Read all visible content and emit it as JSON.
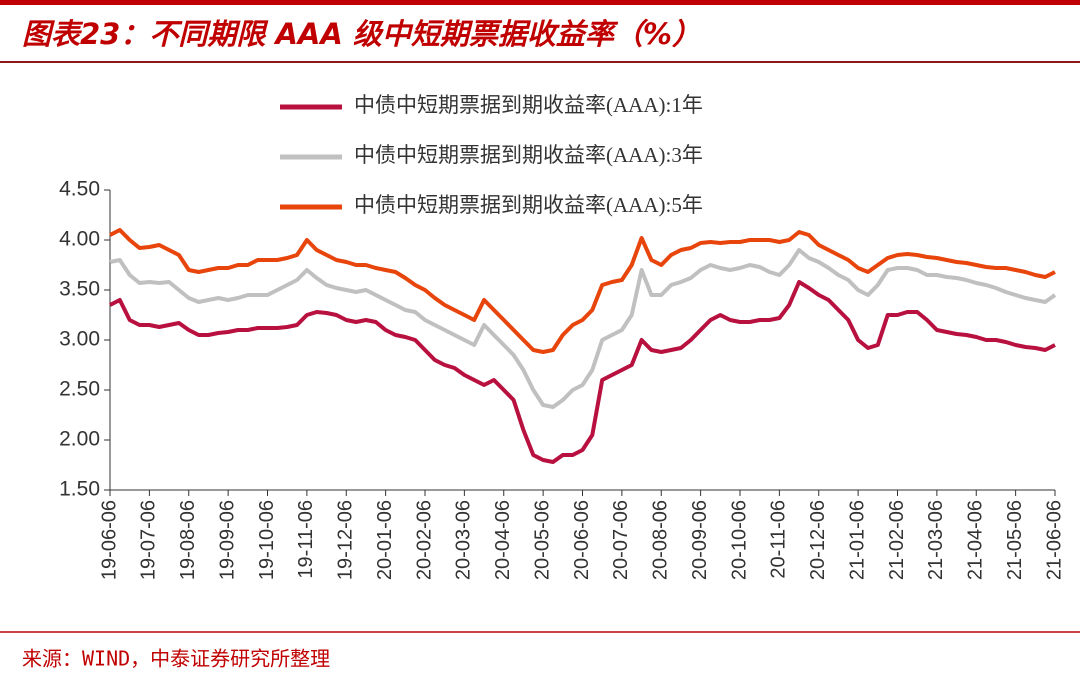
{
  "chart_data": {
    "type": "line",
    "title": "图表23：不同期限 AAA 级中短期票据收益率（%）",
    "source": "来源：WIND，中泰证券研究所整理",
    "categories": [
      "19-06-06",
      null,
      null,
      null,
      "19-07-06",
      null,
      null,
      null,
      "19-08-06",
      null,
      null,
      null,
      "19-09-06",
      null,
      null,
      null,
      "19-10-06",
      null,
      null,
      null,
      "19-11-06",
      null,
      null,
      null,
      "19-12-06",
      null,
      null,
      null,
      "20-01-06",
      null,
      null,
      null,
      "20-02-06",
      null,
      null,
      null,
      "20-03-06",
      null,
      null,
      null,
      "20-04-06",
      null,
      null,
      null,
      "20-05-06",
      null,
      null,
      null,
      "20-06-06",
      null,
      null,
      null,
      "20-07-06",
      null,
      null,
      null,
      "20-08-06",
      null,
      null,
      null,
      "20-09-06",
      null,
      null,
      null,
      "20-10-06",
      null,
      null,
      null,
      "20-11-06",
      null,
      null,
      null,
      "20-12-06",
      null,
      null,
      null,
      "21-01-06",
      null,
      null,
      null,
      "21-02-06",
      null,
      null,
      null,
      "21-03-06",
      null,
      null,
      null,
      "21-04-06",
      null,
      null,
      null,
      "21-05-06",
      null,
      null,
      null,
      "21-06-06"
    ],
    "series": [
      {
        "name": "中债中短期票据到期收益率(AAA):1年",
        "color": "#b8113f",
        "values": [
          3.35,
          3.4,
          3.2,
          3.15,
          3.15,
          3.13,
          3.15,
          3.17,
          3.1,
          3.05,
          3.05,
          3.07,
          3.08,
          3.1,
          3.1,
          3.12,
          3.12,
          3.12,
          3.13,
          3.15,
          3.25,
          3.28,
          3.27,
          3.25,
          3.2,
          3.18,
          3.2,
          3.18,
          3.1,
          3.05,
          3.03,
          3.0,
          2.9,
          2.8,
          2.75,
          2.72,
          2.65,
          2.6,
          2.55,
          2.6,
          2.5,
          2.4,
          2.1,
          1.85,
          1.8,
          1.78,
          1.85,
          1.85,
          1.9,
          2.05,
          2.6,
          2.65,
          2.7,
          2.75,
          3.0,
          2.9,
          2.88,
          2.9,
          2.92,
          3.0,
          3.1,
          3.2,
          3.25,
          3.2,
          3.18,
          3.18,
          3.2,
          3.2,
          3.22,
          3.35,
          3.58,
          3.52,
          3.45,
          3.4,
          3.3,
          3.2,
          3.0,
          2.92,
          2.95,
          3.25,
          3.25,
          3.28,
          3.28,
          3.2,
          3.1,
          3.08,
          3.06,
          3.05,
          3.03,
          3.0,
          3.0,
          2.98,
          2.95,
          2.93,
          2.92,
          2.9,
          2.95
        ]
      },
      {
        "name": "中债中短期票据到期收益率(AAA):3年",
        "color": "#c0c0c0",
        "values": [
          3.78,
          3.8,
          3.65,
          3.57,
          3.58,
          3.57,
          3.58,
          3.5,
          3.42,
          3.38,
          3.4,
          3.42,
          3.4,
          3.42,
          3.45,
          3.45,
          3.45,
          3.5,
          3.55,
          3.6,
          3.7,
          3.62,
          3.55,
          3.52,
          3.5,
          3.48,
          3.5,
          3.45,
          3.4,
          3.35,
          3.3,
          3.28,
          3.2,
          3.15,
          3.1,
          3.05,
          3.0,
          2.95,
          3.15,
          3.05,
          2.95,
          2.85,
          2.7,
          2.5,
          2.35,
          2.33,
          2.4,
          2.5,
          2.55,
          2.7,
          3.0,
          3.05,
          3.1,
          3.25,
          3.7,
          3.45,
          3.45,
          3.55,
          3.58,
          3.62,
          3.7,
          3.75,
          3.72,
          3.7,
          3.72,
          3.75,
          3.73,
          3.68,
          3.65,
          3.75,
          3.9,
          3.82,
          3.78,
          3.72,
          3.65,
          3.6,
          3.5,
          3.45,
          3.55,
          3.7,
          3.72,
          3.72,
          3.7,
          3.65,
          3.65,
          3.63,
          3.62,
          3.6,
          3.57,
          3.55,
          3.52,
          3.48,
          3.45,
          3.42,
          3.4,
          3.38,
          3.45
        ]
      },
      {
        "name": "中债中短期票据到期收益率(AAA):5年",
        "color": "#e8450c",
        "values": [
          4.05,
          4.1,
          4.0,
          3.92,
          3.93,
          3.95,
          3.9,
          3.85,
          3.7,
          3.68,
          3.7,
          3.72,
          3.72,
          3.75,
          3.75,
          3.8,
          3.8,
          3.8,
          3.82,
          3.85,
          4.0,
          3.9,
          3.85,
          3.8,
          3.78,
          3.75,
          3.75,
          3.72,
          3.7,
          3.68,
          3.62,
          3.55,
          3.5,
          3.42,
          3.35,
          3.3,
          3.25,
          3.2,
          3.4,
          3.3,
          3.2,
          3.1,
          3.0,
          2.9,
          2.88,
          2.9,
          3.05,
          3.15,
          3.2,
          3.3,
          3.55,
          3.58,
          3.6,
          3.75,
          4.02,
          3.8,
          3.75,
          3.85,
          3.9,
          3.92,
          3.97,
          3.98,
          3.97,
          3.98,
          3.98,
          4.0,
          4.0,
          4.0,
          3.98,
          4.0,
          4.08,
          4.05,
          3.95,
          3.9,
          3.85,
          3.8,
          3.72,
          3.68,
          3.75,
          3.82,
          3.85,
          3.86,
          3.85,
          3.83,
          3.82,
          3.8,
          3.78,
          3.77,
          3.75,
          3.73,
          3.72,
          3.72,
          3.7,
          3.68,
          3.65,
          3.63,
          3.68
        ]
      }
    ],
    "ylim": [
      1.5,
      4.5
    ],
    "yticks": [
      {
        "value": 1.5,
        "label": "1.50"
      },
      {
        "value": 2,
        "label": "2.00"
      },
      {
        "value": 2.5,
        "label": "2.50"
      },
      {
        "value": 3,
        "label": "3.00"
      },
      {
        "value": 3.5,
        "label": "3.50"
      },
      {
        "value": 4,
        "label": "4.00"
      },
      {
        "value": 4.5,
        "label": "4.50"
      }
    ],
    "grid": false,
    "legend": "top"
  }
}
